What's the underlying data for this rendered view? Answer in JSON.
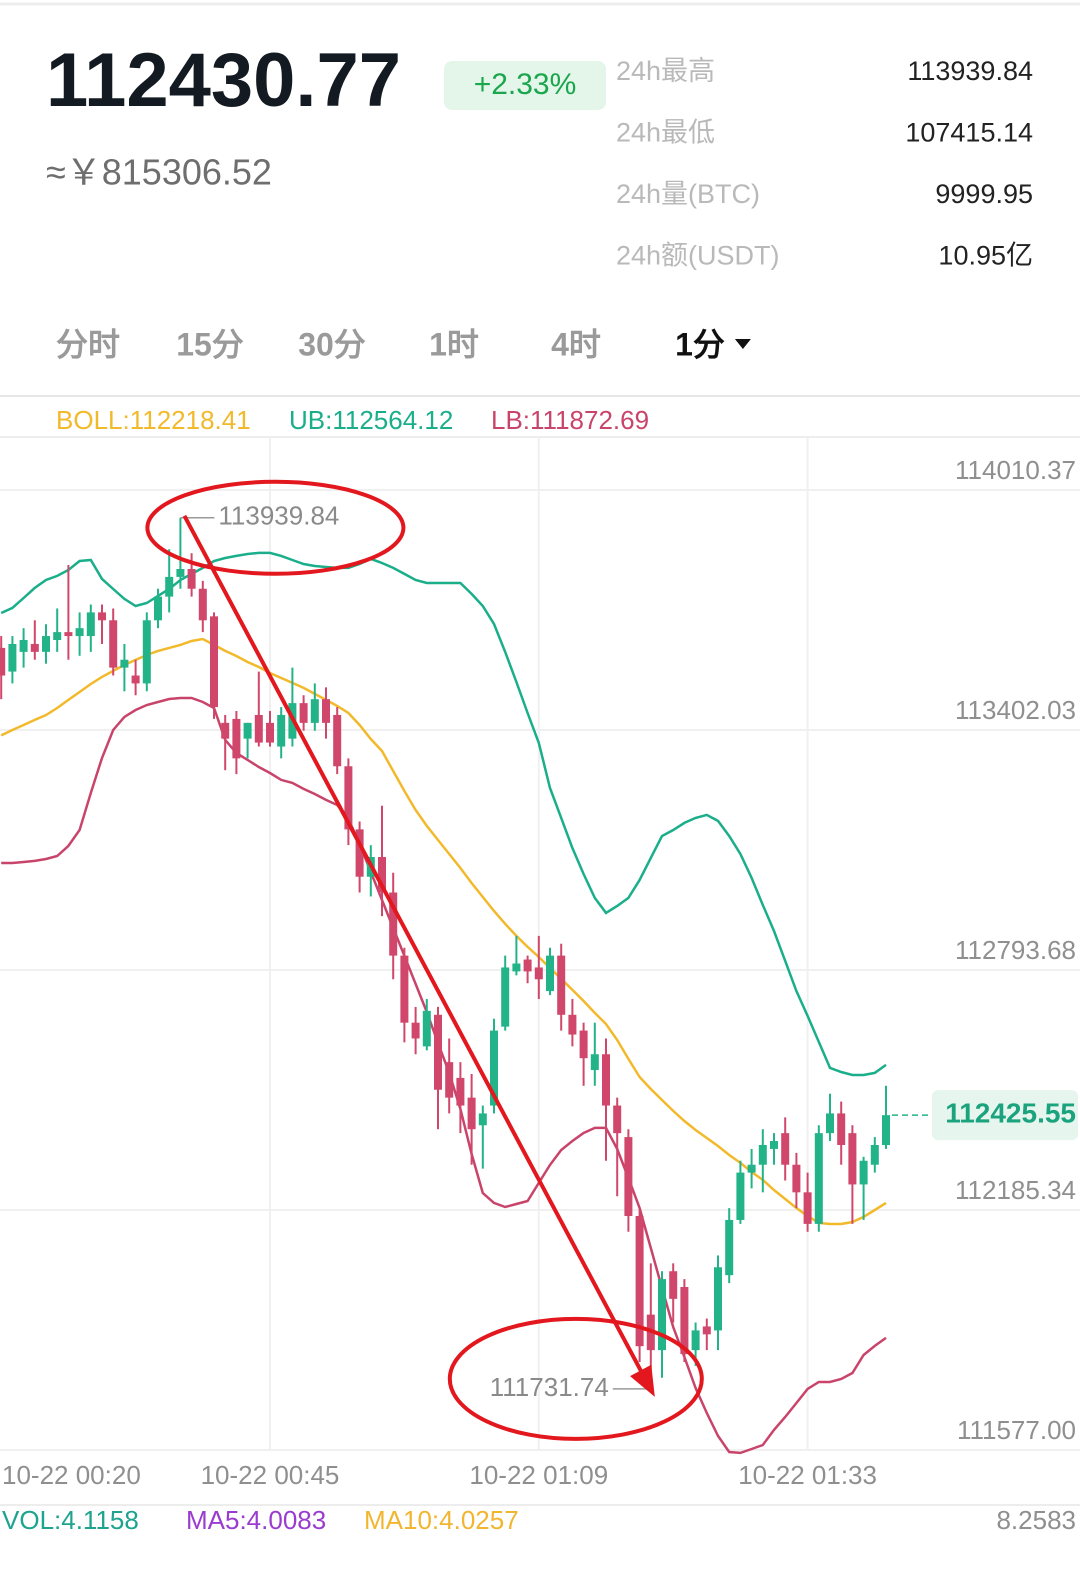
{
  "header": {
    "price": "112430.77",
    "change": "+2.33%",
    "cny": "≈￥815306.52",
    "stats": [
      [
        "24h最高",
        "113939.84"
      ],
      [
        "24h最低",
        "107415.14"
      ],
      [
        "24h量(BTC)",
        "9999.95"
      ],
      [
        "24h额(USDT)",
        "10.95亿"
      ]
    ]
  },
  "tabs": {
    "items": [
      "分时",
      "15分",
      "30分",
      "1时",
      "4时",
      "1分"
    ],
    "active": 5
  },
  "chart_data": {
    "type": "candlestick",
    "indicators": [
      "BOLL:112218.41",
      "UB:112564.12",
      "LB:111872.69"
    ],
    "categories": [
      "10-22 00:20",
      null,
      null,
      null,
      null,
      null,
      null,
      null,
      null,
      null,
      null,
      null,
      null,
      null,
      null,
      null,
      null,
      null,
      null,
      null,
      null,
      null,
      null,
      null,
      null,
      "10-22 00:45",
      null,
      null,
      null,
      null,
      null,
      null,
      null,
      null,
      null,
      null,
      null,
      null,
      null,
      null,
      null,
      null,
      null,
      null,
      null,
      null,
      null,
      null,
      null,
      "10-22 01:09",
      null,
      null,
      null,
      null,
      null,
      null,
      null,
      null,
      null,
      null,
      null,
      null,
      null,
      null,
      null,
      null,
      null,
      null,
      null,
      null,
      null,
      null,
      null,
      "10-22 01:33",
      null,
      null,
      null,
      null,
      null,
      null,
      null
    ],
    "open": [
      null,
      113610,
      113550,
      113600,
      113620,
      113600,
      113630,
      113650,
      113640,
      113640,
      113700,
      113680,
      113560,
      113540,
      113520,
      113680,
      113740,
      113790,
      113810,
      113760,
      113690,
      113420,
      113430,
      113380,
      113440,
      113420,
      113360,
      113380,
      113470,
      113420,
      113480,
      113440,
      113310,
      113150,
      113030,
      113080,
      112990,
      112830,
      112660,
      112600,
      112680,
      112560,
      112520,
      112470,
      112400,
      112450,
      112650,
      112790,
      112820,
      112800,
      112740,
      112830,
      112680,
      112640,
      112540,
      112580,
      112450,
      112370,
      112170,
      111920,
      111830,
      112030,
      111990,
      111830,
      111890,
      111880,
      112020,
      112160,
      112280,
      112300,
      112340,
      112380,
      112300,
      112230,
      112150,
      112380,
      112430,
      112380,
      112250,
      112300,
      112350
    ],
    "high": [
      null,
      113640,
      113640,
      113660,
      113680,
      113670,
      113710,
      113820,
      113700,
      113720,
      113720,
      113710,
      113620,
      113580,
      113700,
      113760,
      113860,
      113939.84,
      113850,
      113780,
      113700,
      113440,
      113450,
      113420,
      113550,
      113450,
      113460,
      113560,
      113490,
      113520,
      113510,
      113460,
      113330,
      113170,
      113110,
      113210,
      113040,
      112850,
      112700,
      112720,
      112700,
      112620,
      112560,
      112530,
      112450,
      112670,
      112830,
      112880,
      112830,
      112880,
      112850,
      112860,
      112720,
      112660,
      112660,
      112620,
      112470,
      112390,
      112190,
      112050,
      112030,
      112050,
      112010,
      111900,
      111910,
      112070,
      112190,
      112310,
      112340,
      112390,
      112380,
      112420,
      112330,
      112280,
      112400,
      112480,
      112460,
      112400,
      112320,
      112370,
      112500
    ],
    "low": [
      null,
      113480,
      113520,
      113560,
      113580,
      113570,
      113600,
      113580,
      113590,
      113600,
      113620,
      113540,
      113500,
      113490,
      113500,
      113660,
      113700,
      113760,
      113740,
      113650,
      113430,
      113300,
      113290,
      113330,
      113360,
      113360,
      113330,
      113360,
      113400,
      113400,
      113380,
      113290,
      113110,
      112990,
      112980,
      112930,
      112770,
      112610,
      112580,
      112590,
      112390,
      112430,
      112380,
      112300,
      112290,
      112430,
      112640,
      112780,
      112760,
      112720,
      112730,
      112640,
      112600,
      112500,
      112500,
      112310,
      112220,
      112130,
      111800,
      111731.74,
      111760,
      111900,
      111800,
      111790,
      111830,
      111830,
      112000,
      112150,
      112240,
      112230,
      112300,
      112260,
      112190,
      112130,
      112130,
      112360,
      112300,
      112150,
      112160,
      112280,
      112340
    ],
    "close": [
      null,
      113540,
      113620,
      113630,
      113600,
      113640,
      113650,
      113640,
      113660,
      113700,
      113680,
      113560,
      113580,
      113520,
      113680,
      113740,
      113790,
      113810,
      113760,
      113680,
      113460,
      113380,
      113330,
      113420,
      113370,
      113370,
      113440,
      113470,
      113420,
      113480,
      113420,
      113310,
      113150,
      113030,
      113080,
      112990,
      112830,
      112660,
      112620,
      112690,
      112490,
      112470,
      112450,
      112390,
      112430,
      112640,
      112800,
      112810,
      112790,
      112770,
      112830,
      112680,
      112630,
      112570,
      112580,
      112450,
      112380,
      112170,
      111840,
      111830,
      112010,
      111960,
      111820,
      111880,
      111870,
      112040,
      112160,
      112280,
      112300,
      112350,
      112360,
      112300,
      112230,
      112150,
      112380,
      112430,
      112350,
      112250,
      112310,
      112350,
      112425.55
    ],
    "up_color": "#22b388",
    "down_color": "#d0476b",
    "bands": [
      {
        "color": "#f2b92b",
        "values": [
          null,
          113388.1,
          113402.0,
          113414.7,
          113427.4,
          113440.0,
          113457.8,
          113478.1,
          113498.3,
          113518.6,
          113536.4,
          113551.6,
          113566.8,
          113579.5,
          113592.1,
          113602.3,
          113609.9,
          113617.5,
          113627.6,
          113632.7,
          113617.5,
          113602.3,
          113589.6,
          113574.4,
          113561.7,
          113546.5,
          113533.8,
          113521.2,
          113508.5,
          113493.3,
          113478.1,
          113462.9,
          113445.1,
          113414.7,
          113379.2,
          113348.8,
          113298.1,
          113247.4,
          113199.2,
          113158.7,
          113123.2,
          113087.7,
          113052.2,
          113014.2,
          112978.7,
          112943.2,
          112910.3,
          112879.9,
          112852.0,
          112826.6,
          112798.7,
          112770.9,
          112743.0,
          112715.1,
          112684.7,
          112656.8,
          112616.2,
          112568.1,
          112522.4,
          112492.0,
          112464.1,
          112436.3,
          112410.9,
          112388.1,
          112367.8,
          112347.5,
          112324.7,
          112304.5,
          112281.6,
          112261.4,
          112236.0,
          112213.2,
          112190.4,
          112170.1,
          112152.4,
          112149.8,
          112149.8,
          112154.9,
          112167.6,
          112185.3,
          112203.1
        ]
      },
      {
        "color": "#1aae8a",
        "values": [
          null,
          113698.6,
          113711.3,
          113736.6,
          113762.0,
          113782.2,
          113792.4,
          113807.6,
          113830.4,
          113832.9,
          113784.8,
          113759.4,
          113734.1,
          113716.3,
          113723.9,
          113741.7,
          113759.4,
          113782.2,
          113797.5,
          113812.7,
          113830.4,
          113838.0,
          113843.1,
          113848.1,
          113850.7,
          113850.7,
          113843.1,
          113832.9,
          113822.8,
          113817.7,
          113815.2,
          113812.7,
          113812.7,
          113822.8,
          113835.5,
          113825.3,
          113812.7,
          113797.5,
          113782.2,
          113774.6,
          113774.6,
          113774.6,
          113774.6,
          113746.8,
          113716.3,
          113670.7,
          113599.7,
          113523.7,
          113445.1,
          113369.1,
          113255.0,
          113179.0,
          113102.9,
          113037.0,
          112976.2,
          112938.2,
          112955.9,
          112976.2,
          113021.8,
          113077.6,
          113133.3,
          113148.5,
          113166.3,
          113179.0,
          113186.6,
          113171.4,
          113133.3,
          113087.7,
          113026.9,
          112958.4,
          112892.5,
          112816.5,
          112740.4,
          112677.1,
          112611.2,
          112545.3,
          112535.1,
          112527.5,
          112527.5,
          112532.6,
          112552.9
        ]
      },
      {
        "color": "#c9446b",
        "values": [
          null,
          113064.9,
          113064.9,
          113067.4,
          113070.0,
          113075.0,
          113082.6,
          113108.0,
          113148.5,
          113242.3,
          113331.0,
          113402.0,
          113435.0,
          113452.7,
          113465.4,
          113473.0,
          113480.6,
          113483.1,
          113483.1,
          113473.0,
          113457.8,
          113376.7,
          113343.7,
          113326.0,
          113308.2,
          113293.0,
          113275.3,
          113267.7,
          113252.5,
          113239.8,
          113224.6,
          113211.9,
          113176.4,
          113113.1,
          113042.1,
          112971.1,
          112900.1,
          112829.2,
          112758.2,
          112687.2,
          112608.6,
          112532.6,
          112441.3,
          112327.3,
          112228.4,
          112203.1,
          112192.9,
          112200.5,
          112208.1,
          112253.8,
          112299.4,
          112337.4,
          112360.2,
          112380.5,
          112393.2,
          112393.2,
          112339.9,
          112266.4,
          112190.4,
          112089.0,
          111987.6,
          111888.7,
          111812.7,
          111734.1,
          111670.7,
          111612.5,
          111571.9,
          111569.4,
          111579.5,
          111589.6,
          111627.7,
          111660.6,
          111696.1,
          111731.6,
          111749.3,
          111749.3,
          111756.9,
          111772.1,
          111817.7,
          111840.6,
          111860.9
        ]
      }
    ],
    "ylim": [
      111560,
      114137
    ],
    "yticks": [
      114010.37,
      113402.03,
      112793.68,
      112185.34,
      {
        "value": 111577,
        "label": "111577.00"
      }
    ],
    "grid": true,
    "last_price": 112425.55,
    "volume": {
      "labels": [
        "VOL:4.1158",
        "MA5:4.0083",
        "MA10:4.0257"
      ],
      "colors": [
        "#1ea38f",
        "#9a3cd0",
        "#f2b530"
      ],
      "max_label": "8.2583"
    }
  }
}
